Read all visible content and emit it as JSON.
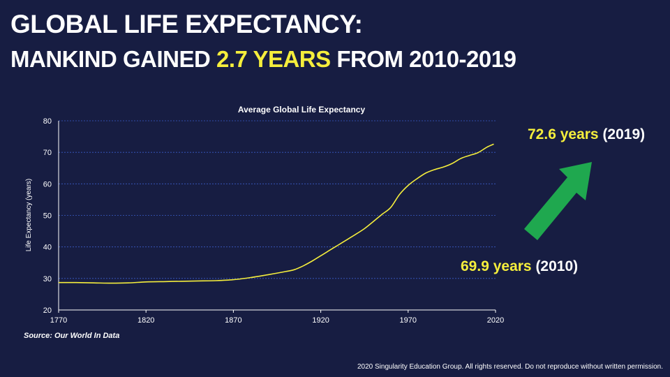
{
  "headline": {
    "line1": "GLOBAL LIFE EXPECTANCY:",
    "line2_prefix": "MANKIND GAINED ",
    "line2_highlight": "2.7 YEARS",
    "line2_suffix": " FROM 2010-2019"
  },
  "callouts": {
    "c2019_value": "72.6 years",
    "c2019_year": " (2019)",
    "c2010_value": "69.9 years",
    "c2010_year": " (2010)"
  },
  "source": "Source: Our World In Data",
  "copyright": "2020 Singularity Education Group. All rights reserved. Do not reproduce without written permission.",
  "colors": {
    "background": "#171d42",
    "highlight": "#f5ee3c",
    "line": "#f5ee3c",
    "arrow": "#1fa84f",
    "grid": "#3b5cc8",
    "axis": "#ffffff"
  },
  "chart_data": {
    "type": "line",
    "title": "Average Global Life Expectancy",
    "xlabel": "",
    "ylabel": "Life Expectancy (years)",
    "xlim": [
      1770,
      2020
    ],
    "ylim": [
      20,
      80
    ],
    "xticks": [
      1770,
      1820,
      1870,
      1920,
      1970,
      2020
    ],
    "yticks": [
      20,
      30,
      40,
      50,
      60,
      70,
      80
    ],
    "grid": true,
    "series": [
      {
        "name": "Average Global Life Expectancy",
        "x": [
          1770,
          1780,
          1790,
          1800,
          1810,
          1820,
          1830,
          1840,
          1850,
          1860,
          1870,
          1880,
          1890,
          1900,
          1905,
          1910,
          1915,
          1920,
          1925,
          1930,
          1935,
          1940,
          1945,
          1950,
          1955,
          1960,
          1965,
          1970,
          1975,
          1980,
          1985,
          1990,
          1995,
          2000,
          2005,
          2010,
          2015,
          2019
        ],
        "y": [
          28.7,
          28.7,
          28.6,
          28.5,
          28.6,
          28.9,
          29.0,
          29.1,
          29.2,
          29.3,
          29.6,
          30.3,
          31.2,
          32.2,
          32.8,
          34.0,
          35.5,
          37.2,
          38.9,
          40.6,
          42.3,
          44.0,
          45.8,
          48.0,
          50.3,
          52.5,
          56.6,
          59.5,
          61.6,
          63.4,
          64.5,
          65.3,
          66.4,
          68.0,
          69.0,
          69.9,
          71.6,
          72.6
        ]
      }
    ]
  }
}
